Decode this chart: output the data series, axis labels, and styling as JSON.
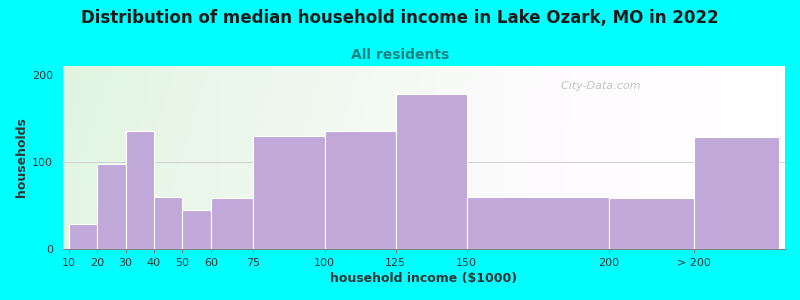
{
  "title": "Distribution of median household income in Lake Ozark, MO in 2022",
  "subtitle": "All residents",
  "xlabel": "household income ($1000)",
  "ylabel": "households",
  "title_fontsize": 12,
  "subtitle_fontsize": 10,
  "axis_label_fontsize": 9,
  "background_color": "#00FFFF",
  "bar_color": "#c0a8d8",
  "bar_edge_color": "#ffffff",
  "categories": [
    "10",
    "20",
    "30",
    "40",
    "50",
    "60",
    "75",
    "100",
    "125",
    "150",
    "200",
    "> 200"
  ],
  "values": [
    28,
    97,
    135,
    60,
    45,
    58,
    130,
    135,
    178,
    60,
    58,
    128
  ],
  "bar_lefts": [
    10,
    20,
    30,
    40,
    50,
    60,
    75,
    100,
    125,
    150,
    200,
    230
  ],
  "bar_rights": [
    20,
    30,
    40,
    50,
    60,
    75,
    100,
    125,
    150,
    200,
    230,
    260
  ],
  "tick_positions": [
    10,
    20,
    30,
    40,
    50,
    60,
    75,
    100,
    125,
    150,
    200,
    230
  ],
  "tick_labels": [
    "10",
    "20",
    "30",
    "40",
    "50",
    "60",
    "75",
    "100",
    "125",
    "150",
    "200",
    "> 200"
  ],
  "ylim": [
    0,
    210
  ],
  "yticks": [
    0,
    100,
    200
  ],
  "xlim": [
    8,
    262
  ],
  "watermark": "  City-Data.com"
}
